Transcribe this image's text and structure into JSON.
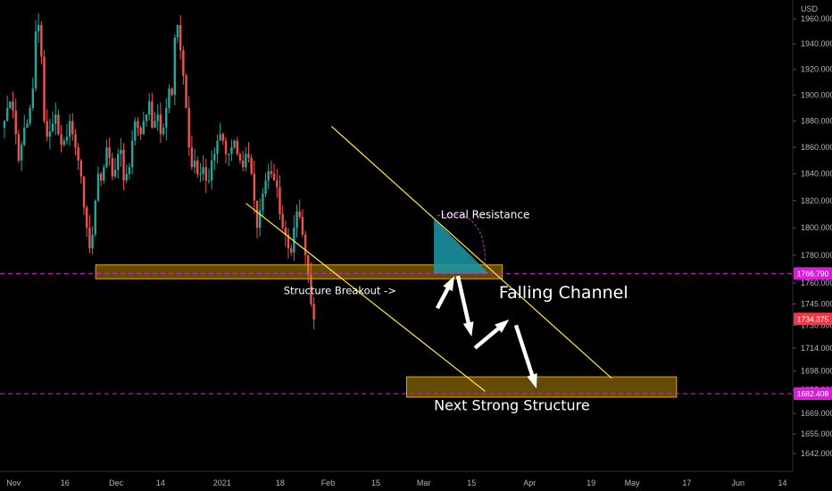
{
  "chart_data": {
    "type": "candlestick",
    "currency": "USD",
    "y_axis": {
      "scale": "log",
      "range": [
        1630,
        1975
      ],
      "ticks": [
        1960,
        1940,
        1920,
        1900,
        1880,
        1860,
        1840,
        1820,
        1800,
        1780,
        1760,
        1745,
        1730,
        1714,
        1698,
        1685,
        1669,
        1655,
        1642
      ]
    },
    "x_axis": {
      "range": [
        "2020-10-28",
        "2021-06-17"
      ],
      "ticks": [
        {
          "date": "2020-11-01",
          "label": "Nov"
        },
        {
          "date": "2020-11-16",
          "label": "16"
        },
        {
          "date": "2020-12-01",
          "label": "Dec"
        },
        {
          "date": "2020-12-14",
          "label": "14"
        },
        {
          "date": "2021-01-01",
          "label": "2021"
        },
        {
          "date": "2021-01-18",
          "label": "18"
        },
        {
          "date": "2021-02-01",
          "label": "Feb"
        },
        {
          "date": "2021-02-15",
          "label": "15"
        },
        {
          "date": "2021-03-01",
          "label": "Mar"
        },
        {
          "date": "2021-03-15",
          "label": "15"
        },
        {
          "date": "2021-04-01",
          "label": "Apr"
        },
        {
          "date": "2021-04-19",
          "label": "19"
        },
        {
          "date": "2021-05-01",
          "label": "May"
        },
        {
          "date": "2021-05-17",
          "label": "17"
        },
        {
          "date": "2021-06-01",
          "label": "Jun"
        },
        {
          "date": "2021-06-14",
          "label": "14"
        }
      ]
    },
    "closes": [
      1880,
      1890,
      1895,
      1888,
      1870,
      1850,
      1862,
      1875,
      1878,
      1890,
      1905,
      1950,
      1955,
      1930,
      1880,
      1868,
      1872,
      1878,
      1885,
      1870,
      1862,
      1865,
      1868,
      1880,
      1870,
      1860,
      1850,
      1838,
      1815,
      1800,
      1785,
      1795,
      1820,
      1840,
      1835,
      1845,
      1860,
      1852,
      1838,
      1843,
      1855,
      1858,
      1835,
      1840,
      1845,
      1865,
      1880,
      1875,
      1870,
      1880,
      1885,
      1895,
      1875,
      1880,
      1885,
      1870,
      1875,
      1890,
      1905,
      1900,
      1945,
      1955,
      1935,
      1915,
      1890,
      1860,
      1845,
      1850,
      1840,
      1840,
      1845,
      1835,
      1835,
      1850,
      1855,
      1865,
      1870,
      1865,
      1855,
      1855,
      1860,
      1865,
      1855,
      1850,
      1845,
      1855,
      1852,
      1840,
      1820,
      1800,
      1813,
      1825,
      1835,
      1842,
      1840,
      1835,
      1830,
      1810,
      1800,
      1795,
      1785,
      1782,
      1800,
      1812,
      1808,
      1795,
      1780,
      1766,
      1745,
      1734
    ],
    "volatility": 10,
    "current_price": 1734.375,
    "price_lines": [
      {
        "value": 1766.79,
        "label": "1766.790",
        "color": "#d81fd8"
      },
      {
        "value": 1682.408,
        "label": "1682.408",
        "color": "#d81fd8"
      }
    ],
    "current_price_tag": {
      "value": 1734.375,
      "label": "1734.375",
      "color": "#f23645"
    },
    "zones": [
      {
        "name": "support-zone-upper",
        "date_start": "2020-11-25",
        "date_end": "2021-03-24",
        "y_top": 1773,
        "y_bottom": 1763
      },
      {
        "name": "support-zone-lower",
        "date_start": "2021-02-24",
        "date_end": "2021-05-14",
        "y_top": 1694,
        "y_bottom": 1680
      }
    ],
    "channel_lines": [
      {
        "name": "channel-upper-line",
        "from": {
          "date": "2021-02-02",
          "y": 1876
        },
        "to": {
          "date": "2021-04-25",
          "y": 1693
        }
      },
      {
        "name": "channel-lower-line",
        "from": {
          "date": "2021-01-08",
          "y": 1818
        },
        "to": {
          "date": "2021-03-19",
          "y": 1684
        }
      }
    ],
    "annotations": {
      "local_resistance": "Local Resistance",
      "structure_breakout": "Structure Breakout ->",
      "falling_channel": "Falling Channel",
      "next_structure": "Next Strong Structure"
    },
    "colors": {
      "up": "#26a69a",
      "down": "#ef5350",
      "zone_fill": "#b8860b",
      "zone_stroke": "#e0a800",
      "channel": "#ffeb3b",
      "resistance_fill": "#1b9aaa",
      "arrow": "#ffffff"
    }
  }
}
